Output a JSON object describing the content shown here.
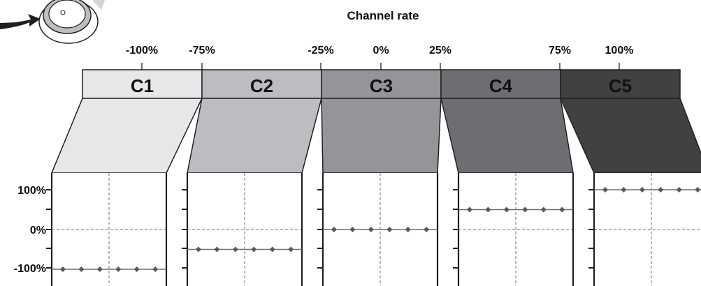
{
  "title": "Channel rate",
  "scale_ticks": [
    "-100%",
    "-75%",
    "-25%",
    "0%",
    "25%",
    "75%",
    "100%"
  ],
  "channels": [
    {
      "label": "C1",
      "fill": "#e6e7e8",
      "level_percent": -100
    },
    {
      "label": "C2",
      "fill": "#bcbdc0",
      "level_percent": -50
    },
    {
      "label": "C3",
      "fill": "#939598",
      "level_percent": 0
    },
    {
      "label": "C4",
      "fill": "#6d6e71",
      "level_percent": 50
    },
    {
      "label": "C5",
      "fill": "#414042",
      "level_percent": 100
    }
  ],
  "y_axis_labels": [
    "100%",
    "0%",
    "-100%"
  ],
  "colors": {
    "outline": "#231f20",
    "marker": "#58595b",
    "line": "#6d6e71",
    "knob": "#bcbdc0",
    "arrow": "#231f20"
  },
  "icons": [
    "knob-icon",
    "arrow-right-icon"
  ]
}
